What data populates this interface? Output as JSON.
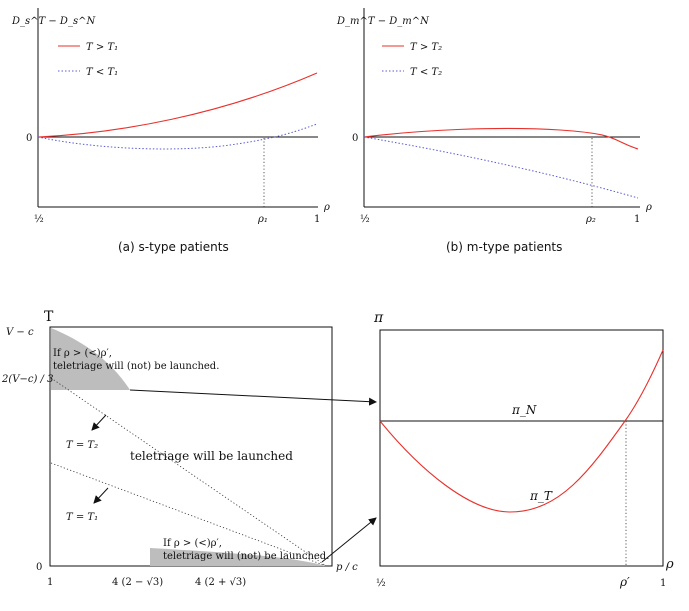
{
  "colors": {
    "red": "#e8312c",
    "blue": "#5b5bd6",
    "shade": "#bdbdbd"
  },
  "panel_a": {
    "ylabel": "D_s^T − D_s^N",
    "legend_above": "T > T₁",
    "legend_below": "T < T₁",
    "zero": "0",
    "x_start": "½",
    "x_mark": "ρ₁",
    "x_end": "1",
    "xvar": "ρ",
    "caption": "(a)  s-type patients"
  },
  "panel_b": {
    "ylabel": "D_m^T − D_m^N",
    "legend_above": "T > T₂",
    "legend_below": "T < T₂",
    "zero": "0",
    "x_start": "½",
    "x_mark": "ρ₂",
    "x_end": "1",
    "xvar": "ρ",
    "caption": "(b)  m-type patients"
  },
  "panel_c": {
    "ylabel": "T",
    "y_top": "V − c",
    "y_mid": "2(V−c) / 3",
    "y_zero": "0",
    "region_note_top_1": "If ρ > (<)ρ′,",
    "region_note_top_2": "teletriage will (not) be launched.",
    "region_note_bot_1": "If ρ > (<)ρ′,",
    "region_note_bot_2": "teletriage will (not) be launched.",
    "center_note": "teletriage will be launched",
    "line_t2": "T = T₂",
    "line_t1": "T = T₁",
    "x_1": "1",
    "x_2": "4 (2 − √3)",
    "x_3": "4 (2 + √3)",
    "x_end": "p / c"
  },
  "panel_d": {
    "ylabel": "π",
    "xvar": "ρ",
    "pi_n": "π_N",
    "pi_t": "π_T",
    "x_start": "½",
    "x_mark": "ρ′",
    "x_end": "1"
  }
}
